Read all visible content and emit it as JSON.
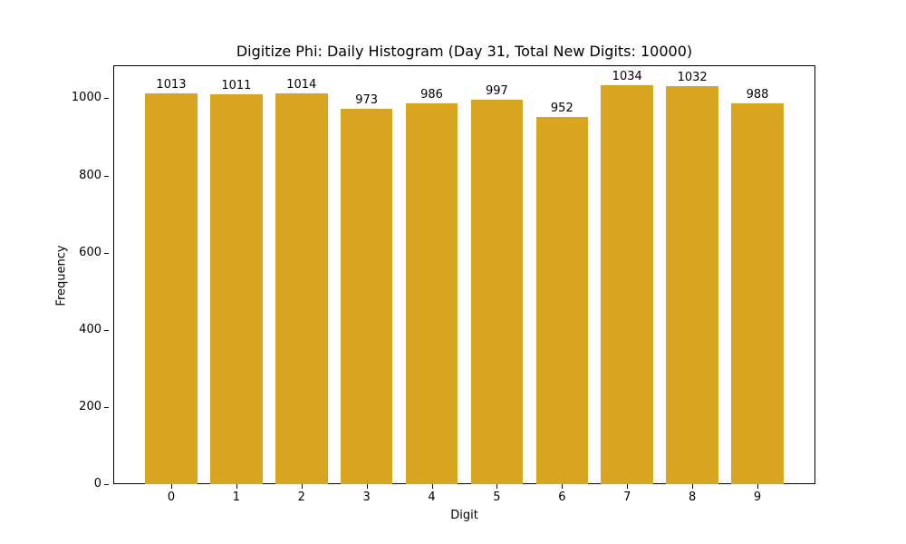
{
  "chart_data": {
    "type": "bar",
    "title": "Digitize Phi: Daily Histogram (Day 31, Total New Digits: 10000)",
    "xlabel": "Digit",
    "ylabel": "Frequency",
    "categories": [
      "0",
      "1",
      "2",
      "3",
      "4",
      "5",
      "6",
      "7",
      "8",
      "9"
    ],
    "values": [
      1013,
      1011,
      1014,
      973,
      986,
      997,
      952,
      1034,
      1032,
      988
    ],
    "bar_labels": [
      "1013",
      "1011",
      "1014",
      "973",
      "986",
      "997",
      "952",
      "1034",
      "1032",
      "988"
    ],
    "yticks": [
      "0",
      "200",
      "400",
      "600",
      "800",
      "1000"
    ],
    "ylim": [
      0,
      1085.7
    ],
    "grid": false,
    "legend": null,
    "bar_color": "#DAA520"
  }
}
